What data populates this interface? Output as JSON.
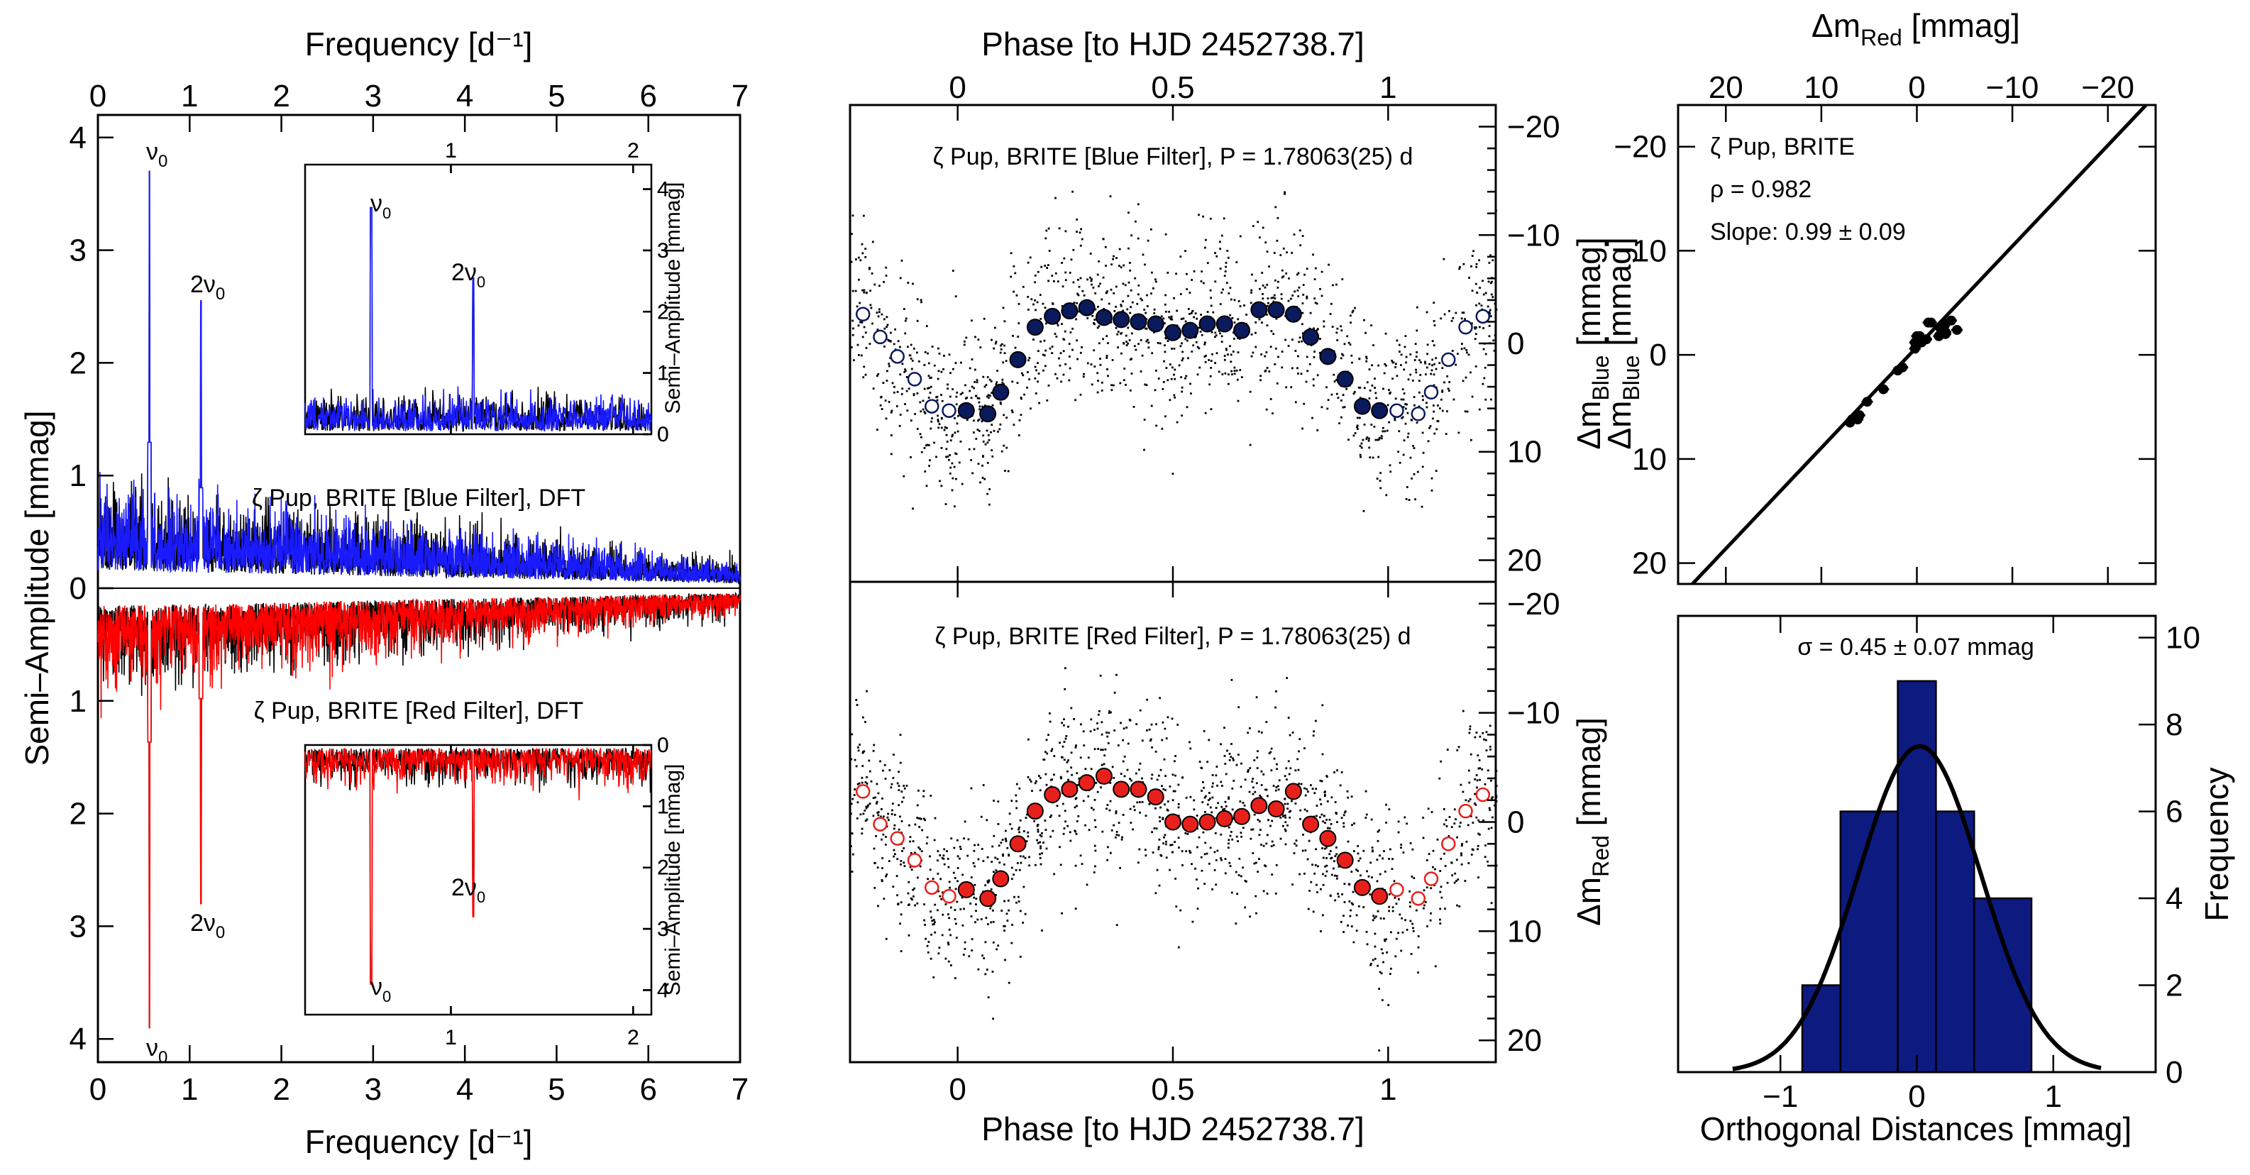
{
  "chart_data": [
    {
      "type": "line",
      "id": "dft",
      "title_blue": "ζ Pup, BRITE [Blue Filter], DFT",
      "title_red": "ζ Pup, BRITE [Red Filter], DFT",
      "xlabel": "Frequency [d⁻¹]",
      "ylabel": "Semi–Amplitude [mmag]",
      "xlim": [
        0,
        7
      ],
      "ylim_top": [
        0,
        4.2
      ],
      "ylim_bottom": [
        0,
        4.2
      ],
      "xticks": [
        "0",
        "1",
        "2",
        "3",
        "4",
        "5",
        "6",
        "7"
      ],
      "yticks": [
        "0",
        "1",
        "2",
        "3",
        "4"
      ],
      "peaks": [
        {
          "label": "ν0",
          "freq": 0.5616,
          "blue_amp": 3.7,
          "red_amp": 3.9
        },
        {
          "label": "2ν0",
          "freq": 1.1232,
          "blue_amp": 2.55,
          "red_amp": 2.8
        }
      ],
      "noise_level_at_0": 0.45,
      "noise_level_at_7": 0.12,
      "series_colors": {
        "blue": "#1a1aff",
        "red": "#ff0000",
        "black": "#000000"
      },
      "inset": {
        "xlim": [
          0.2,
          2.1
        ],
        "ylim": [
          0,
          4.4
        ],
        "xticks": [
          "1",
          "2"
        ],
        "yticks": [
          "0",
          "1",
          "2",
          "3",
          "4"
        ],
        "ylabel": "Semi–Amplitude [mmag]"
      }
    },
    {
      "type": "scatter",
      "id": "lightcurves",
      "xlabel": "Phase [to HJD 2452738.7]",
      "xlim": [
        -0.25,
        1.25
      ],
      "xticks": [
        "0",
        "0.5",
        "1"
      ],
      "blue_panel": {
        "title": "ζ Pup, BRITE [Blue Filter],  P = 1.78063(25) d",
        "ylabel": "Δm_Blue [mmag]",
        "ylim": [
          22,
          -22
        ],
        "yticks": [
          "−20",
          "−10",
          "0",
          "10",
          "20"
        ],
        "color": "#0a1a5c"
      },
      "red_panel": {
        "title": "ζ Pup, BRITE [Red Filter],  P = 1.78063(25) d",
        "ylabel": "Δm_Red [mmag]",
        "ylim": [
          22,
          -22
        ],
        "yticks": [
          "−20",
          "−10",
          "0",
          "10",
          "20"
        ],
        "color": "#e8201c"
      },
      "binned_phase": [
        0.02,
        0.07,
        0.1,
        0.14,
        0.18,
        0.22,
        0.26,
        0.3,
        0.34,
        0.38,
        0.42,
        0.46,
        0.5,
        0.54,
        0.58,
        0.62,
        0.66,
        0.7,
        0.74,
        0.78,
        0.82,
        0.86,
        0.9,
        0.94,
        0.98
      ],
      "binned_blue": [
        6.2,
        6.5,
        4.5,
        1.5,
        -1.5,
        -2.5,
        -3.0,
        -3.3,
        -2.4,
        -2.2,
        -2.0,
        -1.8,
        -1.0,
        -1.2,
        -1.8,
        -1.8,
        -1.2,
        -3.1,
        -3.1,
        -2.7,
        -0.6,
        1.2,
        3.3,
        5.8,
        6.2
      ],
      "binned_red": [
        6.2,
        7.0,
        5.2,
        2.0,
        -1.0,
        -2.5,
        -3.0,
        -3.6,
        -4.2,
        -3.0,
        -3.0,
        -2.3,
        0.0,
        0.2,
        0.0,
        -0.3,
        -0.5,
        -1.5,
        -1.2,
        -2.8,
        0.2,
        1.5,
        3.5,
        6.0,
        6.8
      ]
    },
    {
      "type": "scatter",
      "id": "correlation",
      "label": "ζ Pup, BRITE",
      "rho": "ρ = 0.982",
      "slope": "Slope: 0.99 ± 0.09",
      "xlabel_top": "Δm_Red [mmag]",
      "ylabel": "Δm_Blue [mmag]",
      "xlim": [
        25,
        -25
      ],
      "ylim": [
        22,
        -24
      ],
      "xticks": [
        "20",
        "10",
        "0",
        "−10",
        "−20"
      ],
      "yticks": [
        "−20",
        "−10",
        "0",
        "10",
        "20"
      ],
      "fit_slope": 0.99
    },
    {
      "type": "bar",
      "id": "histogram",
      "annotation": "σ = 0.45 ± 0.07 mmag",
      "xlabel": "Orthogonal Distances [mmag]",
      "ylabel": "Frequency",
      "xlim": [
        -1.75,
        1.75
      ],
      "ylim": [
        0,
        10.5
      ],
      "xticks": [
        "−1",
        "0",
        "1"
      ],
      "yticks": [
        "0",
        "2",
        "4",
        "6",
        "8",
        "10"
      ],
      "bins": [
        {
          "left": -0.84,
          "right": -0.56,
          "count": 2
        },
        {
          "left": -0.56,
          "right": -0.14,
          "count": 6
        },
        {
          "left": -0.14,
          "right": 0.14,
          "count": 9
        },
        {
          "left": 0.14,
          "right": 0.42,
          "count": 6
        },
        {
          "left": 0.42,
          "right": 0.84,
          "count": 4
        }
      ],
      "gauss": {
        "mu": 0.02,
        "sigma": 0.45,
        "peak": 7.5
      },
      "bar_color": "#0d1a80"
    }
  ]
}
